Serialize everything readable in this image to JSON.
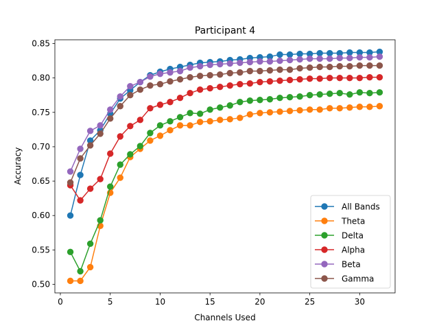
{
  "chart_data": {
    "type": "line",
    "title": "Participant 4",
    "xlabel": "Channels Used",
    "ylabel": "Accuracy",
    "xlim": [
      -0.55,
      33.55
    ],
    "ylim": [
      0.4875,
      0.8555
    ],
    "xticks": [
      0,
      5,
      10,
      15,
      20,
      25,
      30
    ],
    "xtick_labels": [
      "0",
      "5",
      "10",
      "15",
      "20",
      "25",
      "30"
    ],
    "yticks": [
      0.5,
      0.55,
      0.6,
      0.65,
      0.7,
      0.75,
      0.8,
      0.85
    ],
    "ytick_labels": [
      "0.50",
      "0.55",
      "0.60",
      "0.65",
      "0.70",
      "0.75",
      "0.80",
      "0.85"
    ],
    "grid": false,
    "legend_position": "lower-right",
    "marker": "circle",
    "x": [
      1,
      2,
      3,
      4,
      5,
      6,
      7,
      8,
      9,
      10,
      11,
      12,
      13,
      14,
      15,
      16,
      17,
      18,
      19,
      20,
      21,
      22,
      23,
      24,
      25,
      26,
      27,
      28,
      29,
      30,
      31,
      32
    ],
    "series": [
      {
        "name": "All Bands",
        "color": "#1f77b4",
        "values": [
          0.6,
          0.659,
          0.709,
          0.724,
          0.748,
          0.77,
          0.782,
          0.794,
          0.804,
          0.809,
          0.813,
          0.816,
          0.819,
          0.822,
          0.823,
          0.824,
          0.826,
          0.827,
          0.829,
          0.83,
          0.831,
          0.834,
          0.834,
          0.835,
          0.835,
          0.836,
          0.836,
          0.836,
          0.837,
          0.837,
          0.837,
          0.838
        ]
      },
      {
        "name": "Theta",
        "color": "#ff7f0e",
        "values": [
          0.505,
          0.505,
          0.525,
          0.585,
          0.633,
          0.655,
          0.685,
          0.697,
          0.709,
          0.716,
          0.724,
          0.731,
          0.731,
          0.736,
          0.737,
          0.739,
          0.74,
          0.742,
          0.747,
          0.749,
          0.75,
          0.751,
          0.752,
          0.753,
          0.754,
          0.754,
          0.756,
          0.756,
          0.757,
          0.758,
          0.758,
          0.759
        ]
      },
      {
        "name": "Delta",
        "color": "#2ca02c",
        "values": [
          0.547,
          0.519,
          0.559,
          0.593,
          0.642,
          0.674,
          0.689,
          0.701,
          0.72,
          0.731,
          0.737,
          0.743,
          0.749,
          0.748,
          0.754,
          0.757,
          0.76,
          0.765,
          0.767,
          0.768,
          0.769,
          0.771,
          0.772,
          0.773,
          0.775,
          0.776,
          0.777,
          0.778,
          0.776,
          0.779,
          0.778,
          0.779
        ]
      },
      {
        "name": "Alpha",
        "color": "#d62728",
        "values": [
          0.644,
          0.622,
          0.639,
          0.653,
          0.69,
          0.715,
          0.73,
          0.739,
          0.756,
          0.761,
          0.765,
          0.771,
          0.778,
          0.783,
          0.785,
          0.787,
          0.789,
          0.791,
          0.792,
          0.794,
          0.795,
          0.796,
          0.797,
          0.798,
          0.799,
          0.799,
          0.8,
          0.8,
          0.8,
          0.8,
          0.801,
          0.801
        ]
      },
      {
        "name": "Beta",
        "color": "#9467bd",
        "values": [
          0.664,
          0.697,
          0.723,
          0.731,
          0.754,
          0.773,
          0.788,
          0.794,
          0.802,
          0.806,
          0.808,
          0.81,
          0.815,
          0.817,
          0.819,
          0.82,
          0.821,
          0.822,
          0.823,
          0.824,
          0.824,
          0.825,
          0.826,
          0.827,
          0.828,
          0.828,
          0.828,
          0.829,
          0.829,
          0.83,
          0.83,
          0.831
        ]
      },
      {
        "name": "Gamma",
        "color": "#8c564b",
        "values": [
          0.648,
          0.683,
          0.702,
          0.719,
          0.741,
          0.759,
          0.775,
          0.783,
          0.789,
          0.791,
          0.795,
          0.798,
          0.801,
          0.803,
          0.804,
          0.805,
          0.807,
          0.808,
          0.81,
          0.81,
          0.811,
          0.812,
          0.812,
          0.814,
          0.815,
          0.816,
          0.816,
          0.817,
          0.817,
          0.818,
          0.818,
          0.818
        ]
      }
    ]
  }
}
